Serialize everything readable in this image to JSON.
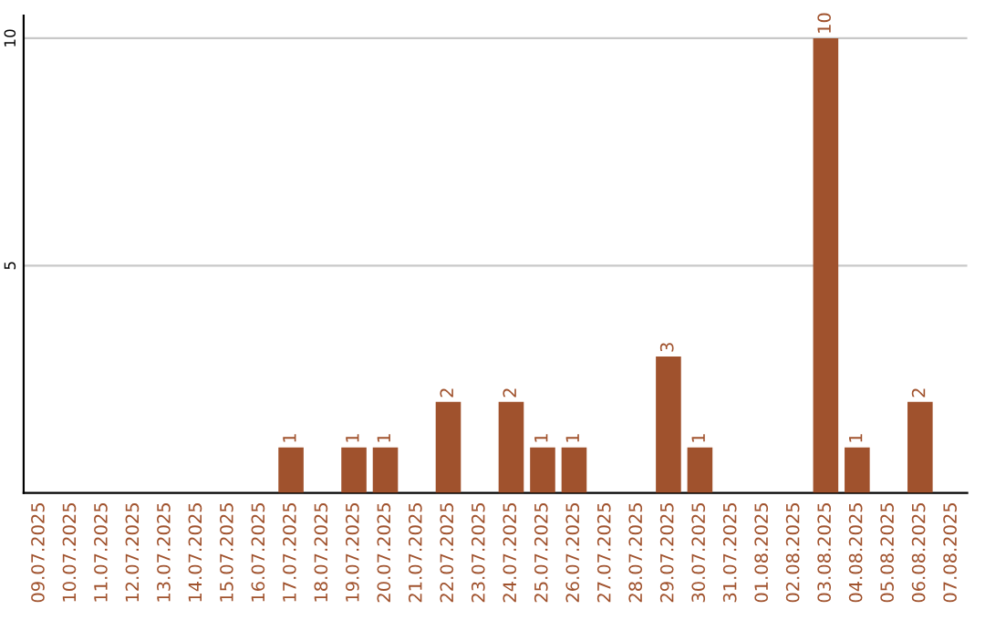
{
  "chart_data": {
    "type": "bar",
    "categories": [
      "09.07.2025",
      "10.07.2025",
      "11.07.2025",
      "12.07.2025",
      "13.07.2025",
      "14.07.2025",
      "15.07.2025",
      "16.07.2025",
      "17.07.2025",
      "18.07.2025",
      "19.07.2025",
      "20.07.2025",
      "21.07.2025",
      "22.07.2025",
      "23.07.2025",
      "24.07.2025",
      "25.07.2025",
      "26.07.2025",
      "27.07.2025",
      "28.07.2025",
      "29.07.2025",
      "30.07.2025",
      "31.07.2025",
      "01.08.2025",
      "02.08.2025",
      "03.08.2025",
      "04.08.2025",
      "05.08.2025",
      "06.08.2025",
      "07.08.2025"
    ],
    "values": [
      0,
      0,
      0,
      0,
      0,
      0,
      0,
      0,
      1,
      0,
      1,
      1,
      0,
      2,
      0,
      2,
      1,
      1,
      0,
      0,
      3,
      1,
      0,
      0,
      0,
      10,
      1,
      0,
      2,
      0
    ],
    "value_labels": [
      null,
      null,
      null,
      null,
      null,
      null,
      null,
      null,
      "1",
      null,
      "1",
      "1",
      null,
      "2",
      null,
      "2",
      "1",
      "1",
      null,
      null,
      "3",
      "1",
      null,
      null,
      null,
      "10",
      "1",
      null,
      "2",
      null
    ],
    "color": "#a0522d",
    "ylim": [
      0,
      10.5
    ],
    "yticks": [
      5,
      10
    ],
    "grid": "y"
  }
}
